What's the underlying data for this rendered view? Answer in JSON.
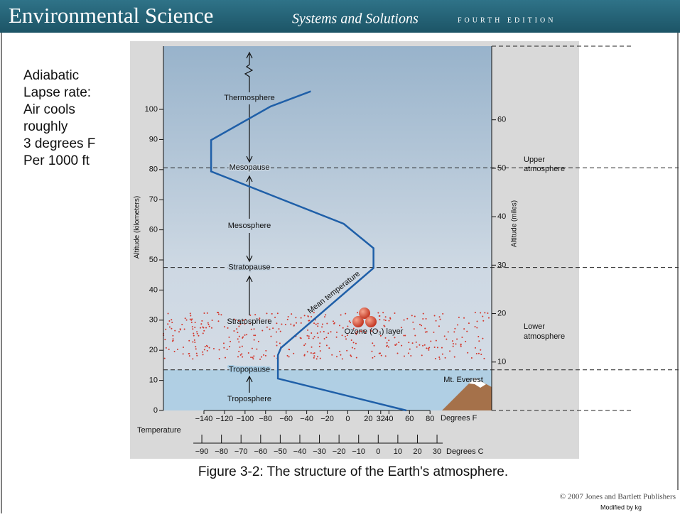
{
  "header": {
    "title": "Environmental Science",
    "subtitle": "Systems and Solutions",
    "edition": "FOURTH EDITION"
  },
  "notes": [
    "Adiabatic",
    "Lapse rate:",
    "Air cools",
    "roughly",
    "3 degrees F",
    "Per 1000 ft"
  ],
  "caption": "Figure 3-2: The structure of the Earth's atmosphere.",
  "copyright": "© 2007 Jones and Bartlett Publishers",
  "modified": "Modified by kg",
  "chart_data": {
    "type": "line",
    "x": [
      57,
      -68,
      -68,
      -65,
      -44,
      25,
      25,
      -4,
      -133,
      -133,
      -75,
      -36
    ],
    "series": [
      {
        "name": "Mean temperature",
        "color": "#1f5fa8",
        "values": [
          0,
          10.6,
          18.4,
          20.8,
          27,
          47.3,
          53.9,
          62,
          79.4,
          89.8,
          101,
          106
        ]
      }
    ],
    "xlim": [
      -179.4,
      140
    ],
    "xticks": [
      {
        "value": -140,
        "label": "−140"
      },
      {
        "value": -120,
        "label": "−120"
      },
      {
        "value": -100,
        "label": "−100"
      },
      {
        "value": -80,
        "label": "−80"
      },
      {
        "value": -60,
        "label": "−60"
      },
      {
        "value": -40,
        "label": "−40"
      },
      {
        "value": -20,
        "label": "−20"
      },
      0,
      20,
      32,
      40,
      60,
      80
    ],
    "xlabel": "Degrees F",
    "xtitle": "Temperature",
    "x2lim": [
      -109.6,
      57.9
    ],
    "x2ticks": [
      {
        "value": -90,
        "label": "−90"
      },
      {
        "value": -80,
        "label": "−80"
      },
      {
        "value": -70,
        "label": "−70"
      },
      {
        "value": -60,
        "label": "−60"
      },
      {
        "value": -50,
        "label": "−50"
      },
      {
        "value": -40,
        "label": "−40"
      },
      {
        "value": -30,
        "label": "−30"
      },
      {
        "value": -20,
        "label": "−20"
      },
      {
        "value": -10,
        "label": "−10"
      },
      0,
      10,
      20,
      30
    ],
    "x2label": "Degrees C",
    "ylim": [
      0,
      121
    ],
    "yticks": [
      0,
      10,
      20,
      30,
      40,
      50,
      60,
      70,
      80,
      90,
      100
    ],
    "ylabel": "Altitude (kilometers)",
    "y2lim": [
      0,
      75.2
    ],
    "y2ticks": [
      10,
      20,
      30,
      40,
      50,
      60
    ],
    "y2label": "Altitude (miles)",
    "boundaries": [
      {
        "label": "Tropopause",
        "value": 13.5
      },
      {
        "label": "Stratopause",
        "value": 47.5
      },
      {
        "label": "Mesopause",
        "value": 80.6
      }
    ],
    "layers": [
      "Troposphere",
      "Stratosphere",
      "Mesosphere",
      "Thermosphere"
    ],
    "ozone_label": "Ozone (O₃) layer",
    "everest_label": "Mt. Everest",
    "region_labels": [
      [
        "Upper",
        "atmosphere"
      ],
      [
        "Lower",
        "atmosphere"
      ]
    ]
  }
}
